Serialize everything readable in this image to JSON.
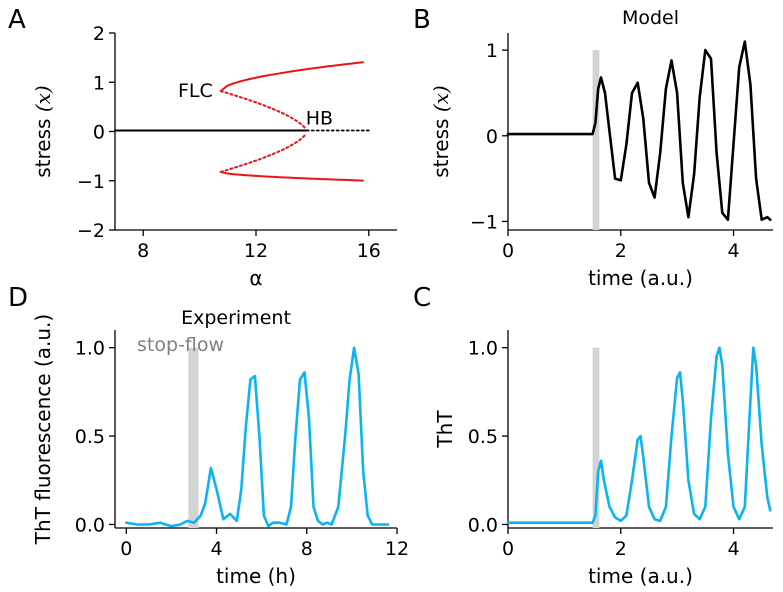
{
  "chart_data": [
    {
      "panel": "A",
      "type": "line",
      "title": "",
      "xlabel": "α",
      "ylabel": "stress",
      "ylabel_math": "(x)",
      "xlim": [
        7,
        17
      ],
      "ylim": [
        -2,
        2
      ],
      "x_ticks": [
        "8",
        "12",
        "16"
      ],
      "y_ticks": [
        "2",
        "1",
        "0",
        "−1",
        "−2"
      ],
      "annotations": [
        "FLC",
        "HB"
      ],
      "colors": {
        "stable_fixed": "#000000",
        "limit_cycle": "#e8141a"
      },
      "series": [
        {
          "style": "solid-black",
          "x": [
            7,
            13.8
          ],
          "y": [
            0.02,
            0.02
          ]
        },
        {
          "style": "dotted-black",
          "x": [
            13.8,
            16
          ],
          "y": [
            0.02,
            0.02
          ]
        }
      ]
    },
    {
      "panel": "B",
      "type": "line",
      "title": "Model",
      "xlabel": "time (a.u.)",
      "ylabel": "stress",
      "ylabel_math": "(x)",
      "xlim": [
        0,
        4.7
      ],
      "ylim": [
        -1.1,
        1.2
      ],
      "x_ticks": [
        "0",
        "2",
        "4"
      ],
      "y_ticks": [
        "1",
        "0",
        "−1"
      ],
      "shaded_interval": [
        1.5,
        1.62
      ],
      "colors": {
        "line": "#000000",
        "shade": "#d3d3d3"
      },
      "series": [
        {
          "name": "",
          "x": [
            0,
            1.5,
            1.55,
            1.6,
            1.65,
            1.72,
            1.8,
            1.9,
            2.0,
            2.1,
            2.2,
            2.3,
            2.4,
            2.5,
            2.6,
            2.7,
            2.8,
            2.9,
            3.0,
            3.1,
            3.2,
            3.3,
            3.4,
            3.5,
            3.6,
            3.7,
            3.8,
            3.9,
            4.0,
            4.1,
            4.2,
            4.3,
            4.4,
            4.5,
            4.6,
            4.65
          ],
          "y": [
            0.02,
            0.02,
            0.15,
            0.55,
            0.68,
            0.5,
            0.05,
            -0.5,
            -0.52,
            -0.1,
            0.5,
            0.62,
            0.2,
            -0.55,
            -0.72,
            -0.2,
            0.55,
            0.88,
            0.5,
            -0.55,
            -0.95,
            -0.45,
            0.45,
            1.0,
            0.9,
            -0.2,
            -0.9,
            -0.98,
            -0.1,
            0.8,
            1.1,
            0.6,
            -0.5,
            -0.98,
            -0.95,
            -0.98
          ]
        }
      ]
    },
    {
      "panel": "D",
      "type": "line",
      "title": "Experiment",
      "xlabel": "time (h)",
      "ylabel": "ThT fluorescence (a.u.)",
      "xlim": [
        -0.5,
        12
      ],
      "ylim": [
        -0.02,
        1.1
      ],
      "x_ticks": [
        "0",
        "4",
        "8",
        "12"
      ],
      "y_ticks": [
        "1.0",
        "0.5",
        "0.0"
      ],
      "annotations": [
        "stop-flow"
      ],
      "shaded_interval": [
        2.75,
        3.2
      ],
      "colors": {
        "line": "#0bb4f0",
        "shade": "#d3d3d3"
      },
      "series": [
        {
          "name": "",
          "x": [
            0,
            0.5,
            1,
            1.5,
            2,
            2.4,
            2.7,
            3,
            3.3,
            3.5,
            3.75,
            4,
            4.3,
            4.6,
            4.9,
            5.1,
            5.3,
            5.5,
            5.7,
            5.9,
            6.1,
            6.3,
            6.5,
            6.8,
            7.1,
            7.3,
            7.5,
            7.7,
            7.9,
            8.1,
            8.3,
            8.5,
            8.7,
            8.9,
            9.1,
            9.4,
            9.7,
            9.9,
            10.1,
            10.3,
            10.5,
            10.7,
            10.9,
            11.1,
            11.3,
            11.6
          ],
          "y": [
            0.01,
            0.0,
            0.0,
            0.01,
            -0.01,
            0.0,
            0.02,
            0.01,
            0.05,
            0.12,
            0.32,
            0.2,
            0.03,
            0.06,
            0.02,
            0.2,
            0.55,
            0.82,
            0.84,
            0.5,
            0.05,
            -0.01,
            0.01,
            0.01,
            0.0,
            0.1,
            0.5,
            0.82,
            0.86,
            0.6,
            0.1,
            0.02,
            0.0,
            0.01,
            0.0,
            0.1,
            0.5,
            0.82,
            1.0,
            0.85,
            0.3,
            0.05,
            0.0,
            0.0,
            0.0,
            0.0
          ]
        }
      ]
    },
    {
      "panel": "C",
      "type": "line",
      "title": "",
      "xlabel": "time (a.u.)",
      "ylabel": "ThT",
      "xlim": [
        0,
        4.7
      ],
      "ylim": [
        -0.02,
        1.1
      ],
      "x_ticks": [
        "0",
        "2",
        "4"
      ],
      "y_ticks": [
        "1.0",
        "0.5",
        "0.0"
      ],
      "shaded_interval": [
        1.5,
        1.62
      ],
      "colors": {
        "line": "#0bb4f0",
        "shade": "#d3d3d3"
      },
      "series": [
        {
          "name": "",
          "x": [
            0,
            1.5,
            1.55,
            1.6,
            1.65,
            1.7,
            1.8,
            1.9,
            2.0,
            2.1,
            2.2,
            2.3,
            2.35,
            2.4,
            2.5,
            2.6,
            2.7,
            2.8,
            2.9,
            3.0,
            3.05,
            3.1,
            3.2,
            3.3,
            3.4,
            3.5,
            3.6,
            3.7,
            3.75,
            3.8,
            3.9,
            4.0,
            4.1,
            4.2,
            4.3,
            4.35,
            4.4,
            4.5,
            4.6,
            4.65
          ],
          "y": [
            0.01,
            0.01,
            0.05,
            0.3,
            0.36,
            0.25,
            0.1,
            0.04,
            0.02,
            0.05,
            0.25,
            0.48,
            0.5,
            0.38,
            0.1,
            0.03,
            0.02,
            0.1,
            0.5,
            0.83,
            0.86,
            0.7,
            0.25,
            0.06,
            0.03,
            0.1,
            0.6,
            0.95,
            1.0,
            0.9,
            0.4,
            0.1,
            0.03,
            0.1,
            0.7,
            1.0,
            0.9,
            0.45,
            0.15,
            0.08
          ]
        }
      ]
    }
  ],
  "panel_labels": {
    "A": "A",
    "B": "B",
    "C": "C",
    "D": "D"
  }
}
